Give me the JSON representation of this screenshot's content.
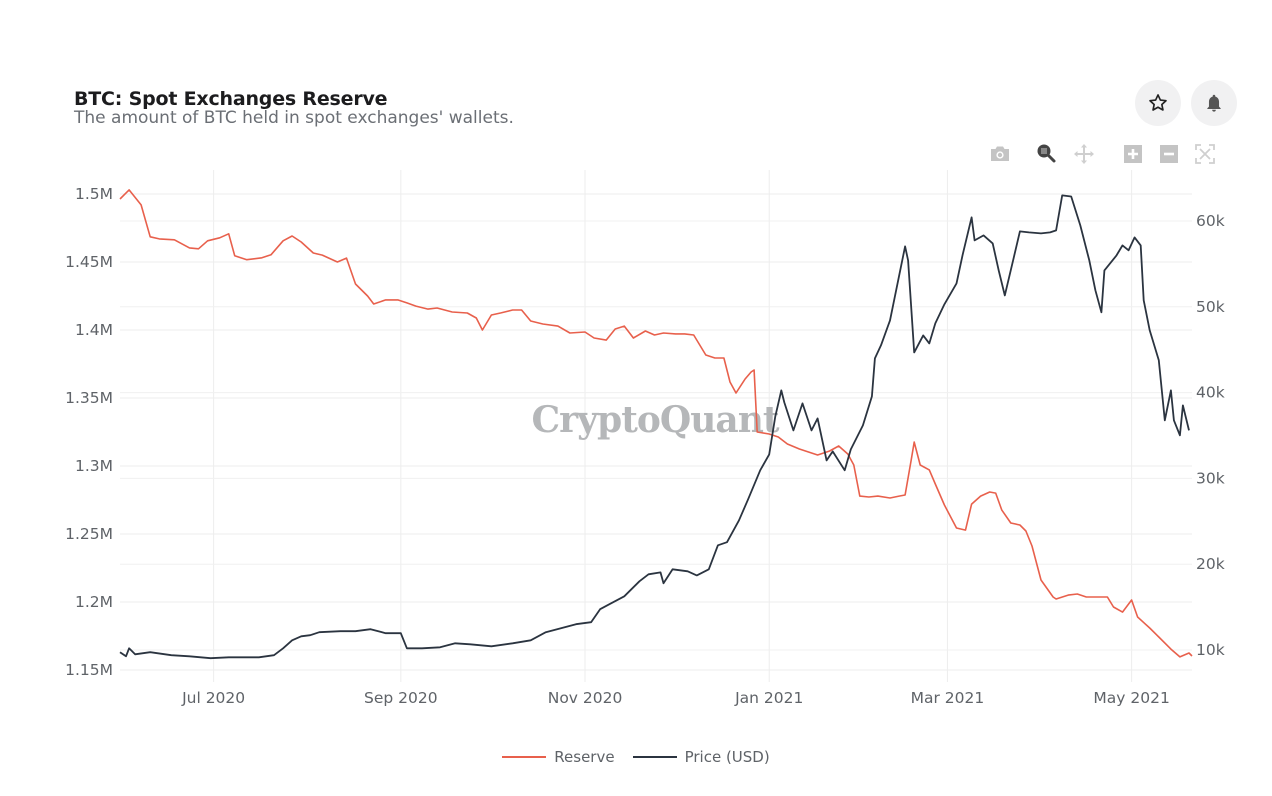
{
  "header": {
    "title": "BTC: Spot Exchanges Reserve",
    "subtitle": "The amount of BTC held in spot exchanges' wallets.",
    "favorite_icon": "star-outline-icon",
    "alert_icon": "bell-icon"
  },
  "modebar": [
    {
      "name": "download-plot-as-png",
      "icon": "camera-icon"
    },
    {
      "name": "zoom",
      "icon": "zoom-magnifier-icon",
      "active": true
    },
    {
      "name": "pan",
      "icon": "pan-arrows-icon"
    },
    {
      "name": "zoom-in",
      "icon": "plus-square-icon"
    },
    {
      "name": "zoom-out",
      "icon": "minus-square-icon"
    },
    {
      "name": "autoscale",
      "icon": "autoscale-icon"
    }
  ],
  "watermark": "CryptoQuant",
  "colors": {
    "reserve": "#e8604c",
    "price": "#2b3440",
    "grid": "#ececec",
    "tick_text": "#5f6368"
  },
  "chart_data": {
    "type": "line",
    "title": "BTC: Spot Exchanges Reserve",
    "subtitle": "The amount of BTC held in spot exchanges' wallets.",
    "xlabel": "",
    "ylabel": "",
    "y2label": "",
    "grid": true,
    "legend_position": "bottom-center",
    "x_range": [
      "2020-05-31",
      "2021-05-21"
    ],
    "x_ticks": [
      {
        "date": "2020-07-01",
        "label": "Jul 2020"
      },
      {
        "date": "2020-09-01",
        "label": "Sep 2020"
      },
      {
        "date": "2020-11-01",
        "label": "Nov 2020"
      },
      {
        "date": "2021-01-01",
        "label": "Jan 2021"
      },
      {
        "date": "2021-03-01",
        "label": "Mar 2021"
      },
      {
        "date": "2021-05-01",
        "label": "May 2021"
      }
    ],
    "y_left": {
      "range": [
        1150000,
        1503500
      ],
      "ticks": [
        {
          "value": 1150000,
          "label": "1.15M"
        },
        {
          "value": 1200000,
          "label": "1.2M"
        },
        {
          "value": 1250000,
          "label": "1.25M"
        },
        {
          "value": 1300000,
          "label": "1.3M"
        },
        {
          "value": 1350000,
          "label": "1.35M"
        },
        {
          "value": 1400000,
          "label": "1.4M"
        },
        {
          "value": 1450000,
          "label": "1.45M"
        },
        {
          "value": 1500000,
          "label": "1.5M"
        }
      ]
    },
    "y_right": {
      "range": [
        7700,
        63200
      ],
      "ticks": [
        {
          "value": 10000,
          "label": "10k"
        },
        {
          "value": 20000,
          "label": "20k"
        },
        {
          "value": 30000,
          "label": "30k"
        },
        {
          "value": 40000,
          "label": "40k"
        },
        {
          "value": 50000,
          "label": "50k"
        },
        {
          "value": 60000,
          "label": "60k"
        }
      ]
    },
    "series": [
      {
        "name": "Reserve",
        "axis": "left",
        "color": "#e8604c",
        "points": [
          [
            "2020-05-31",
            1496300
          ],
          [
            "2020-06-03",
            1503000
          ],
          [
            "2020-06-07",
            1492000
          ],
          [
            "2020-06-10",
            1468500
          ],
          [
            "2020-06-13",
            1467000
          ],
          [
            "2020-06-18",
            1466300
          ],
          [
            "2020-06-23",
            1460400
          ],
          [
            "2020-06-26",
            1459700
          ],
          [
            "2020-06-29",
            1465600
          ],
          [
            "2020-07-03",
            1467800
          ],
          [
            "2020-07-06",
            1470700
          ],
          [
            "2020-07-08",
            1454600
          ],
          [
            "2020-07-12",
            1451700
          ],
          [
            "2020-07-17",
            1453100
          ],
          [
            "2020-07-20",
            1455300
          ],
          [
            "2020-07-24",
            1465600
          ],
          [
            "2020-07-27",
            1469100
          ],
          [
            "2020-07-30",
            1464700
          ],
          [
            "2020-08-03",
            1456600
          ],
          [
            "2020-08-06",
            1455100
          ],
          [
            "2020-08-11",
            1450000
          ],
          [
            "2020-08-14",
            1452900
          ],
          [
            "2020-08-17",
            1433800
          ],
          [
            "2020-08-21",
            1425000
          ],
          [
            "2020-08-23",
            1419100
          ],
          [
            "2020-08-27",
            1422100
          ],
          [
            "2020-08-31",
            1422100
          ],
          [
            "2020-09-03",
            1419900
          ],
          [
            "2020-09-06",
            1417600
          ],
          [
            "2020-09-10",
            1415400
          ],
          [
            "2020-09-13",
            1416200
          ],
          [
            "2020-09-18",
            1413200
          ],
          [
            "2020-09-23",
            1412500
          ],
          [
            "2020-09-26",
            1408800
          ],
          [
            "2020-09-28",
            1400000
          ],
          [
            "2020-10-01",
            1411000
          ],
          [
            "2020-10-04",
            1412500
          ],
          [
            "2020-10-08",
            1414700
          ],
          [
            "2020-10-11",
            1414700
          ],
          [
            "2020-10-14",
            1406600
          ],
          [
            "2020-10-18",
            1404400
          ],
          [
            "2020-10-23",
            1402900
          ],
          [
            "2020-10-27",
            1397800
          ],
          [
            "2020-11-01",
            1398500
          ],
          [
            "2020-11-04",
            1394100
          ],
          [
            "2020-11-08",
            1392600
          ],
          [
            "2020-11-11",
            1400700
          ],
          [
            "2020-11-14",
            1402900
          ],
          [
            "2020-11-17",
            1394100
          ],
          [
            "2020-11-21",
            1399300
          ],
          [
            "2020-11-24",
            1396300
          ],
          [
            "2020-11-27",
            1397800
          ],
          [
            "2020-12-01",
            1397100
          ],
          [
            "2020-12-04",
            1397100
          ],
          [
            "2020-12-07",
            1396300
          ],
          [
            "2020-12-11",
            1381600
          ],
          [
            "2020-12-14",
            1379400
          ],
          [
            "2020-12-17",
            1379400
          ],
          [
            "2020-12-19",
            1361800
          ],
          [
            "2020-12-21",
            1353700
          ],
          [
            "2020-12-24",
            1364000
          ],
          [
            "2020-12-26",
            1369100
          ],
          [
            "2020-12-27",
            1370600
          ],
          [
            "2020-12-28",
            1325000
          ],
          [
            "2021-01-01",
            1323500
          ],
          [
            "2021-01-04",
            1321300
          ],
          [
            "2021-01-07",
            1316200
          ],
          [
            "2021-01-11",
            1312500
          ],
          [
            "2021-01-14",
            1310300
          ],
          [
            "2021-01-17",
            1308100
          ],
          [
            "2021-01-21",
            1311000
          ],
          [
            "2021-01-24",
            1314700
          ],
          [
            "2021-01-27",
            1308800
          ],
          [
            "2021-01-29",
            1300700
          ],
          [
            "2021-01-31",
            1277900
          ],
          [
            "2021-02-03",
            1277200
          ],
          [
            "2021-02-06",
            1277900
          ],
          [
            "2021-02-10",
            1276500
          ],
          [
            "2021-02-13",
            1277900
          ],
          [
            "2021-02-15",
            1278700
          ],
          [
            "2021-02-17",
            1304400
          ],
          [
            "2021-02-18",
            1317600
          ],
          [
            "2021-02-20",
            1300700
          ],
          [
            "2021-02-23",
            1297100
          ],
          [
            "2021-02-25",
            1286800
          ],
          [
            "2021-02-28",
            1271300
          ],
          [
            "2021-03-04",
            1254400
          ],
          [
            "2021-03-07",
            1252900
          ],
          [
            "2021-03-09",
            1272000
          ],
          [
            "2021-03-12",
            1277900
          ],
          [
            "2021-03-15",
            1280900
          ],
          [
            "2021-03-17",
            1280100
          ],
          [
            "2021-03-19",
            1267600
          ],
          [
            "2021-03-22",
            1258100
          ],
          [
            "2021-03-25",
            1256600
          ],
          [
            "2021-03-27",
            1252200
          ],
          [
            "2021-03-29",
            1241200
          ],
          [
            "2021-04-01",
            1216200
          ],
          [
            "2021-04-05",
            1203700
          ],
          [
            "2021-04-06",
            1202200
          ],
          [
            "2021-04-10",
            1205100
          ],
          [
            "2021-04-13",
            1205900
          ],
          [
            "2021-04-16",
            1203700
          ],
          [
            "2021-04-20",
            1203700
          ],
          [
            "2021-04-23",
            1203700
          ],
          [
            "2021-04-25",
            1196300
          ],
          [
            "2021-04-28",
            1192600
          ],
          [
            "2021-05-01",
            1201500
          ],
          [
            "2021-05-03",
            1189000
          ],
          [
            "2021-05-07",
            1180900
          ],
          [
            "2021-05-10",
            1174300
          ],
          [
            "2021-05-14",
            1165400
          ],
          [
            "2021-05-17",
            1159600
          ],
          [
            "2021-05-20",
            1162500
          ],
          [
            "2021-05-21",
            1160300
          ]
        ]
      },
      {
        "name": "Price (USD)",
        "axis": "right",
        "color": "#2b3440",
        "points": [
          [
            "2020-05-31",
            9740
          ],
          [
            "2020-06-02",
            9270
          ],
          [
            "2020-06-03",
            10200
          ],
          [
            "2020-06-05",
            9500
          ],
          [
            "2020-06-10",
            9740
          ],
          [
            "2020-06-17",
            9390
          ],
          [
            "2020-06-23",
            9270
          ],
          [
            "2020-06-30",
            9040
          ],
          [
            "2020-07-06",
            9150
          ],
          [
            "2020-07-16",
            9150
          ],
          [
            "2020-07-21",
            9390
          ],
          [
            "2020-07-24",
            10200
          ],
          [
            "2020-07-27",
            11130
          ],
          [
            "2020-07-30",
            11600
          ],
          [
            "2020-08-02",
            11720
          ],
          [
            "2020-08-05",
            12070
          ],
          [
            "2020-08-12",
            12190
          ],
          [
            "2020-08-17",
            12190
          ],
          [
            "2020-08-22",
            12420
          ],
          [
            "2020-08-27",
            11960
          ],
          [
            "2020-09-01",
            11960
          ],
          [
            "2020-09-03",
            10200
          ],
          [
            "2020-09-08",
            10200
          ],
          [
            "2020-09-14",
            10310
          ],
          [
            "2020-09-19",
            10780
          ],
          [
            "2020-09-24",
            10660
          ],
          [
            "2020-10-01",
            10430
          ],
          [
            "2020-10-08",
            10780
          ],
          [
            "2020-10-14",
            11130
          ],
          [
            "2020-10-19",
            12070
          ],
          [
            "2020-10-24",
            12540
          ],
          [
            "2020-10-29",
            13010
          ],
          [
            "2020-11-03",
            13240
          ],
          [
            "2020-11-06",
            14750
          ],
          [
            "2020-11-09",
            15330
          ],
          [
            "2020-11-14",
            16260
          ],
          [
            "2020-11-19",
            18010
          ],
          [
            "2020-11-22",
            18820
          ],
          [
            "2020-11-26",
            19050
          ],
          [
            "2020-11-27",
            17770
          ],
          [
            "2020-11-30",
            19400
          ],
          [
            "2020-12-05",
            19170
          ],
          [
            "2020-12-08",
            18700
          ],
          [
            "2020-12-12",
            19400
          ],
          [
            "2020-12-15",
            22200
          ],
          [
            "2020-12-18",
            22560
          ],
          [
            "2020-12-22",
            25120
          ],
          [
            "2020-12-25",
            27560
          ],
          [
            "2020-12-29",
            30940
          ],
          [
            "2021-01-01",
            32800
          ],
          [
            "2021-01-03",
            37230
          ],
          [
            "2021-01-05",
            40260
          ],
          [
            "2021-01-06",
            38860
          ],
          [
            "2021-01-09",
            35600
          ],
          [
            "2021-01-12",
            38740
          ],
          [
            "2021-01-15",
            35600
          ],
          [
            "2021-01-17",
            36990
          ],
          [
            "2021-01-20",
            32100
          ],
          [
            "2021-01-22",
            33150
          ],
          [
            "2021-01-26",
            30940
          ],
          [
            "2021-01-28",
            33380
          ],
          [
            "2021-02-01",
            36180
          ],
          [
            "2021-02-04",
            39560
          ],
          [
            "2021-02-05",
            43990
          ],
          [
            "2021-02-07",
            45510
          ],
          [
            "2021-02-10",
            48420
          ],
          [
            "2021-02-15",
            57040
          ],
          [
            "2021-02-16",
            55410
          ],
          [
            "2021-02-18",
            44690
          ],
          [
            "2021-02-21",
            46670
          ],
          [
            "2021-02-23",
            45740
          ],
          [
            "2021-02-25",
            48070
          ],
          [
            "2021-02-28",
            50290
          ],
          [
            "2021-03-04",
            52730
          ],
          [
            "2021-03-06",
            55990
          ],
          [
            "2021-03-09",
            60420
          ],
          [
            "2021-03-10",
            57740
          ],
          [
            "2021-03-13",
            58320
          ],
          [
            "2021-03-16",
            57390
          ],
          [
            "2021-03-18",
            54240
          ],
          [
            "2021-03-20",
            51330
          ],
          [
            "2021-03-23",
            55760
          ],
          [
            "2021-03-25",
            58790
          ],
          [
            "2021-03-28",
            58670
          ],
          [
            "2021-04-01",
            58550
          ],
          [
            "2021-04-04",
            58670
          ],
          [
            "2021-04-06",
            58900
          ],
          [
            "2021-04-08",
            62980
          ],
          [
            "2021-04-11",
            62860
          ],
          [
            "2021-04-14",
            59490
          ],
          [
            "2021-04-17",
            55410
          ],
          [
            "2021-04-19",
            51920
          ],
          [
            "2021-04-21",
            49360
          ],
          [
            "2021-04-22",
            54240
          ],
          [
            "2021-04-26",
            55990
          ],
          [
            "2021-04-28",
            57160
          ],
          [
            "2021-04-30",
            56580
          ],
          [
            "2021-05-02",
            58090
          ],
          [
            "2021-05-04",
            57160
          ],
          [
            "2021-05-05",
            50760
          ],
          [
            "2021-05-07",
            47260
          ],
          [
            "2021-05-10",
            43760
          ],
          [
            "2021-05-12",
            36770
          ],
          [
            "2021-05-14",
            40260
          ],
          [
            "2021-05-15",
            36770
          ],
          [
            "2021-05-17",
            35020
          ],
          [
            "2021-05-18",
            38510
          ],
          [
            "2021-05-20",
            35600
          ]
        ]
      }
    ]
  },
  "legend": [
    {
      "label": "Reserve",
      "color": "#e8604c"
    },
    {
      "label": "Price (USD)",
      "color": "#2b3440"
    }
  ]
}
